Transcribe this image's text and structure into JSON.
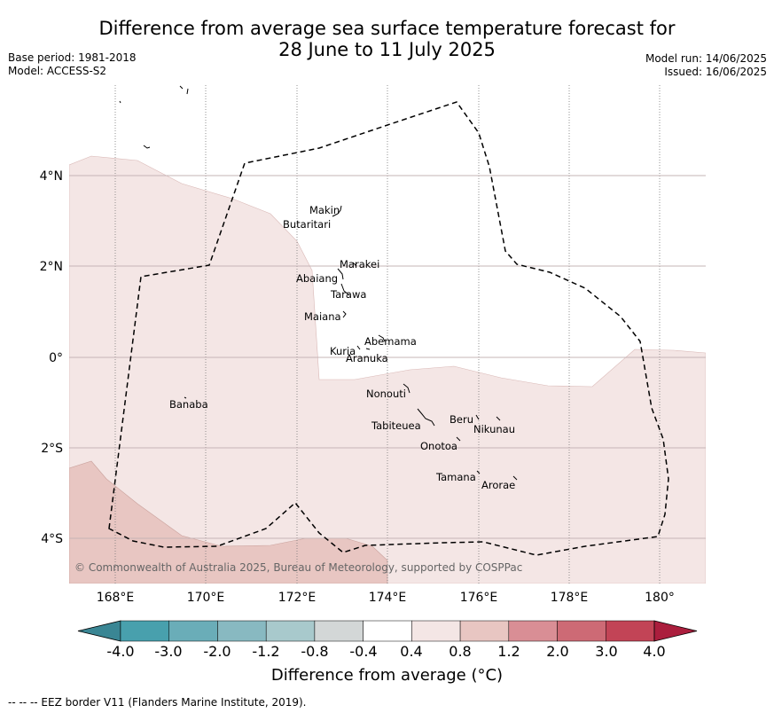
{
  "title": {
    "line1": "Difference from average sea surface temperature forecast for",
    "line2": "28 June to 11 July 2025"
  },
  "meta_left": {
    "base_period": "Base period: 1981-2018",
    "model": "Model: ACCESS-S2"
  },
  "meta_right": {
    "model_run": "Model run: 14/06/2025",
    "issued": "Issued: 16/06/2025"
  },
  "map": {
    "lon_ticks": [
      "168°E",
      "170°E",
      "172°E",
      "174°E",
      "176°E",
      "178°E",
      "180°"
    ],
    "lat_ticks": [
      "4°N",
      "2°N",
      "0°",
      "2°S",
      "4°S"
    ],
    "copyright": "© Commonwealth of Australia 2025, Bureau of Meteorology, supported by COSPPac",
    "islands": [
      {
        "name": "Makin"
      },
      {
        "name": "Butaritari"
      },
      {
        "name": "Marakei"
      },
      {
        "name": "Abaiang"
      },
      {
        "name": "Tarawa"
      },
      {
        "name": "Maiana"
      },
      {
        "name": "Abemama"
      },
      {
        "name": "Kuria"
      },
      {
        "name": "Aranuka"
      },
      {
        "name": "Nonouti"
      },
      {
        "name": "Banaba"
      },
      {
        "name": "Beru"
      },
      {
        "name": "Tabiteuea"
      },
      {
        "name": "Nikunau"
      },
      {
        "name": "Onotoa"
      },
      {
        "name": "Tamana"
      },
      {
        "name": "Arorae"
      }
    ]
  },
  "colorbar": {
    "tick_labels": [
      "-4.0",
      "-3.0",
      "-2.0",
      "-1.2",
      "-0.8",
      "-0.4",
      "0.4",
      "0.8",
      "1.2",
      "2.0",
      "3.0",
      "4.0"
    ],
    "colors": [
      "#3a8694",
      "#48a0ad",
      "#6aadb8",
      "#88b9c1",
      "#a8c9cc",
      "#d3d7d7",
      "#ffffff",
      "#f4e6e5",
      "#e8c6c2",
      "#d98e95",
      "#cd6a75",
      "#c24456",
      "#ab1e3d"
    ],
    "label": "Difference from average (°C)"
  },
  "footer": "--  --  -- EEZ border V11 (Flanders Marine Institute, 2019)."
}
